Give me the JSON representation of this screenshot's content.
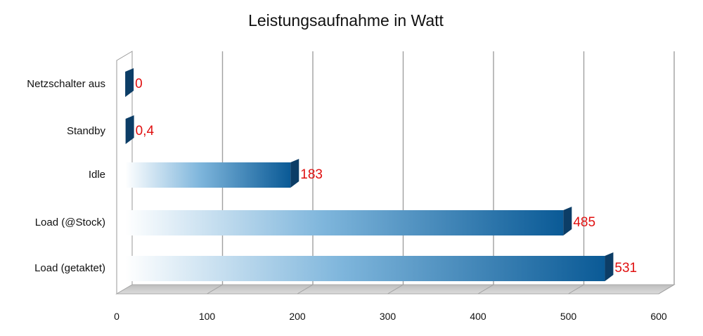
{
  "chart_data": {
    "type": "bar",
    "orientation": "horizontal",
    "title": "Leistungsaufnahme in Watt",
    "categories": [
      "Netzschalter aus",
      "Standby",
      "Idle",
      "Load (@Stock)",
      "Load (getaktet)"
    ],
    "values": [
      0,
      0.4,
      183,
      485,
      531
    ],
    "value_labels": [
      "0",
      "0,4",
      "183",
      "485",
      "531"
    ],
    "xlim": [
      0,
      600
    ],
    "xticks": [
      "0",
      "100",
      "200",
      "300",
      "400",
      "500",
      "600"
    ],
    "grid": true,
    "style": "3d",
    "colors": {
      "bar_dark": "#0a5a96",
      "bar_light": "#ffffff",
      "bar_side": "#0c3d66",
      "data_label": "#e01010",
      "grid": "#a0a0a0",
      "floor": "#c8c8c8"
    }
  }
}
